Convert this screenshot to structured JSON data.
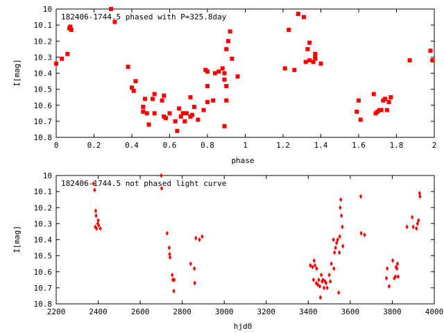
{
  "chart_data": [
    {
      "type": "scatter",
      "title": "182406-1744.5 phased with P=325.8day",
      "xlabel": "phase",
      "ylabel": "I[mag]",
      "xlim": [
        0,
        2
      ],
      "ylim": [
        10.8,
        10
      ],
      "y_inverted": true,
      "grid": false,
      "legend": "none",
      "marker": "filled-square",
      "color": "#ff0000",
      "x_ticks": [
        "0",
        "0.2",
        "0.4",
        "0.6",
        "0.8",
        "1",
        "1.2",
        "1.4",
        "1.6",
        "1.8",
        "2"
      ],
      "y_ticks": [
        "10",
        "10.1",
        "10.2",
        "10.3",
        "10.4",
        "10.5",
        "10.6",
        "10.7",
        "10.8"
      ],
      "points": [
        {
          "x": 0.0,
          "y": 10.34
        },
        {
          "x": 0.03,
          "y": 10.31
        },
        {
          "x": 0.06,
          "y": 10.28
        },
        {
          "x": 0.07,
          "y": 10.12
        },
        {
          "x": 0.075,
          "y": 10.11
        },
        {
          "x": 0.08,
          "y": 10.13
        },
        {
          "x": 0.29,
          "y": 10.0
        },
        {
          "x": 0.31,
          "y": 10.08
        },
        {
          "x": 0.38,
          "y": 10.36
        },
        {
          "x": 0.4,
          "y": 10.49
        },
        {
          "x": 0.41,
          "y": 10.51
        },
        {
          "x": 0.42,
          "y": 10.45
        },
        {
          "x": 0.46,
          "y": 10.61
        },
        {
          "x": 0.46,
          "y": 10.64
        },
        {
          "x": 0.47,
          "y": 10.56
        },
        {
          "x": 0.48,
          "y": 10.65
        },
        {
          "x": 0.49,
          "y": 10.72
        },
        {
          "x": 0.51,
          "y": 10.56
        },
        {
          "x": 0.52,
          "y": 10.65
        },
        {
          "x": 0.52,
          "y": 10.53
        },
        {
          "x": 0.56,
          "y": 10.57
        },
        {
          "x": 0.57,
          "y": 10.54
        },
        {
          "x": 0.57,
          "y": 10.67
        },
        {
          "x": 0.58,
          "y": 10.68
        },
        {
          "x": 0.6,
          "y": 10.65
        },
        {
          "x": 0.63,
          "y": 10.7
        },
        {
          "x": 0.64,
          "y": 10.76
        },
        {
          "x": 0.65,
          "y": 10.62
        },
        {
          "x": 0.66,
          "y": 10.67
        },
        {
          "x": 0.67,
          "y": 10.65
        },
        {
          "x": 0.68,
          "y": 10.7
        },
        {
          "x": 0.69,
          "y": 10.65
        },
        {
          "x": 0.71,
          "y": 10.55
        },
        {
          "x": 0.71,
          "y": 10.67
        },
        {
          "x": 0.72,
          "y": 10.66
        },
        {
          "x": 0.73,
          "y": 10.61
        },
        {
          "x": 0.75,
          "y": 10.69
        },
        {
          "x": 0.78,
          "y": 10.63
        },
        {
          "x": 0.79,
          "y": 10.38
        },
        {
          "x": 0.8,
          "y": 10.39
        },
        {
          "x": 0.8,
          "y": 10.48
        },
        {
          "x": 0.8,
          "y": 10.58
        },
        {
          "x": 0.83,
          "y": 10.57
        },
        {
          "x": 0.84,
          "y": 10.4
        },
        {
          "x": 0.86,
          "y": 10.39
        },
        {
          "x": 0.88,
          "y": 10.37
        },
        {
          "x": 0.89,
          "y": 10.73
        },
        {
          "x": 0.89,
          "y": 10.4
        },
        {
          "x": 0.89,
          "y": 10.44
        },
        {
          "x": 0.9,
          "y": 10.48
        },
        {
          "x": 0.9,
          "y": 10.57
        },
        {
          "x": 0.9,
          "y": 10.25
        },
        {
          "x": 0.91,
          "y": 10.2
        },
        {
          "x": 0.92,
          "y": 10.14
        },
        {
          "x": 0.93,
          "y": 10.31
        },
        {
          "x": 0.96,
          "y": 10.42
        },
        {
          "x": 1.21,
          "y": 10.37
        },
        {
          "x": 1.23,
          "y": 10.13
        },
        {
          "x": 1.26,
          "y": 10.38
        },
        {
          "x": 1.28,
          "y": 10.03
        },
        {
          "x": 1.31,
          "y": 10.05
        },
        {
          "x": 1.32,
          "y": 10.33
        },
        {
          "x": 1.33,
          "y": 10.25
        },
        {
          "x": 1.34,
          "y": 10.21
        },
        {
          "x": 1.34,
          "y": 10.32
        },
        {
          "x": 1.36,
          "y": 10.33
        },
        {
          "x": 1.37,
          "y": 10.28
        },
        {
          "x": 1.37,
          "y": 10.3
        },
        {
          "x": 1.37,
          "y": 10.31
        },
        {
          "x": 1.4,
          "y": 10.34
        },
        {
          "x": 1.59,
          "y": 10.64
        },
        {
          "x": 1.6,
          "y": 10.57
        },
        {
          "x": 1.61,
          "y": 10.69
        },
        {
          "x": 1.68,
          "y": 10.53
        },
        {
          "x": 1.69,
          "y": 10.65
        },
        {
          "x": 1.7,
          "y": 10.64
        },
        {
          "x": 1.71,
          "y": 10.63
        },
        {
          "x": 1.72,
          "y": 10.63
        },
        {
          "x": 1.73,
          "y": 10.57
        },
        {
          "x": 1.74,
          "y": 10.56
        },
        {
          "x": 1.75,
          "y": 10.63
        },
        {
          "x": 1.76,
          "y": 10.58
        },
        {
          "x": 1.77,
          "y": 10.55
        },
        {
          "x": 1.87,
          "y": 10.32
        },
        {
          "x": 1.98,
          "y": 10.26
        },
        {
          "x": 1.99,
          "y": 10.32
        }
      ]
    },
    {
      "type": "scatter",
      "title": "182406-1744.5 not phased light curve",
      "xlabel": "hjd0",
      "ylabel": "I[mag]",
      "xlim": [
        2200,
        4000
      ],
      "ylim": [
        10.8,
        10
      ],
      "y_inverted": true,
      "grid": false,
      "legend": "none",
      "marker": "filled-diamond",
      "color": "#ff0000",
      "x_ticks": [
        "2200",
        "2400",
        "2600",
        "2800",
        "3000",
        "3200",
        "3400",
        "3600",
        "3800",
        "4000"
      ],
      "y_ticks": [
        "10",
        "10.1",
        "10.2",
        "10.3",
        "10.4",
        "10.5",
        "10.6",
        "10.7",
        "10.8"
      ],
      "points": [
        {
          "x": 2378,
          "y": 10.05
        },
        {
          "x": 2383,
          "y": 10.09
        },
        {
          "x": 2388,
          "y": 10.22
        },
        {
          "x": 2390,
          "y": 10.25
        },
        {
          "x": 2386,
          "y": 10.32
        },
        {
          "x": 2392,
          "y": 10.33
        },
        {
          "x": 2398,
          "y": 10.3
        },
        {
          "x": 2400,
          "y": 10.28
        },
        {
          "x": 2402,
          "y": 10.31
        },
        {
          "x": 2410,
          "y": 10.33
        },
        {
          "x": 2700,
          "y": 10.0
        },
        {
          "x": 2702,
          "y": 10.08
        },
        {
          "x": 2728,
          "y": 10.36
        },
        {
          "x": 2738,
          "y": 10.45
        },
        {
          "x": 2740,
          "y": 10.49
        },
        {
          "x": 2742,
          "y": 10.51
        },
        {
          "x": 2752,
          "y": 10.62
        },
        {
          "x": 2755,
          "y": 10.65
        },
        {
          "x": 2760,
          "y": 10.72
        },
        {
          "x": 2762,
          "y": 10.65
        },
        {
          "x": 2840,
          "y": 10.55
        },
        {
          "x": 2858,
          "y": 10.58
        },
        {
          "x": 2860,
          "y": 10.67
        },
        {
          "x": 2865,
          "y": 10.39
        },
        {
          "x": 2882,
          "y": 10.4
        },
        {
          "x": 2895,
          "y": 10.38
        },
        {
          "x": 3410,
          "y": 10.56
        },
        {
          "x": 3420,
          "y": 10.57
        },
        {
          "x": 3425,
          "y": 10.65
        },
        {
          "x": 3428,
          "y": 10.53
        },
        {
          "x": 3432,
          "y": 10.56
        },
        {
          "x": 3438,
          "y": 10.67
        },
        {
          "x": 3440,
          "y": 10.58
        },
        {
          "x": 3445,
          "y": 10.68
        },
        {
          "x": 3450,
          "y": 10.65
        },
        {
          "x": 3455,
          "y": 10.69
        },
        {
          "x": 3458,
          "y": 10.76
        },
        {
          "x": 3462,
          "y": 10.62
        },
        {
          "x": 3466,
          "y": 10.66
        },
        {
          "x": 3470,
          "y": 10.65
        },
        {
          "x": 3475,
          "y": 10.7
        },
        {
          "x": 3480,
          "y": 10.66
        },
        {
          "x": 3485,
          "y": 10.67
        },
        {
          "x": 3490,
          "y": 10.7
        },
        {
          "x": 3500,
          "y": 10.62
        },
        {
          "x": 3505,
          "y": 10.66
        },
        {
          "x": 3510,
          "y": 10.55
        },
        {
          "x": 3520,
          "y": 10.4
        },
        {
          "x": 3522,
          "y": 10.58
        },
        {
          "x": 3525,
          "y": 10.48
        },
        {
          "x": 3530,
          "y": 10.45
        },
        {
          "x": 3535,
          "y": 10.42
        },
        {
          "x": 3540,
          "y": 10.4
        },
        {
          "x": 3545,
          "y": 10.73
        },
        {
          "x": 3548,
          "y": 10.48
        },
        {
          "x": 3550,
          "y": 10.38
        },
        {
          "x": 3552,
          "y": 10.2
        },
        {
          "x": 3555,
          "y": 10.15
        },
        {
          "x": 3558,
          "y": 10.25
        },
        {
          "x": 3562,
          "y": 10.32
        },
        {
          "x": 3565,
          "y": 10.44
        },
        {
          "x": 3650,
          "y": 10.13
        },
        {
          "x": 3652,
          "y": 10.36
        },
        {
          "x": 3668,
          "y": 10.37
        },
        {
          "x": 3772,
          "y": 10.64
        },
        {
          "x": 3776,
          "y": 10.58
        },
        {
          "x": 3785,
          "y": 10.69
        },
        {
          "x": 3802,
          "y": 10.53
        },
        {
          "x": 3810,
          "y": 10.64
        },
        {
          "x": 3815,
          "y": 10.63
        },
        {
          "x": 3818,
          "y": 10.57
        },
        {
          "x": 3822,
          "y": 10.58
        },
        {
          "x": 3825,
          "y": 10.55
        },
        {
          "x": 3828,
          "y": 10.63
        },
        {
          "x": 3870,
          "y": 10.32
        },
        {
          "x": 3895,
          "y": 10.26
        },
        {
          "x": 3900,
          "y": 10.32
        },
        {
          "x": 3915,
          "y": 10.33
        },
        {
          "x": 3920,
          "y": 10.3
        },
        {
          "x": 3925,
          "y": 10.28
        },
        {
          "x": 3930,
          "y": 10.11
        },
        {
          "x": 3932,
          "y": 10.13
        }
      ]
    }
  ]
}
